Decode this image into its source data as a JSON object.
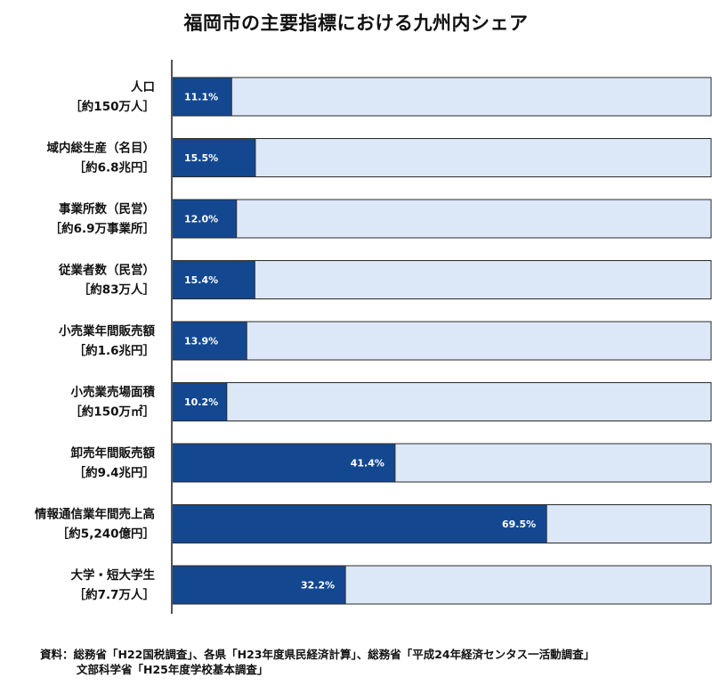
{
  "chart_data": {
    "type": "bar",
    "orientation": "horizontal",
    "stacked_share": true,
    "title": "福岡市の主要指標における九州内シェア",
    "categories": [
      {
        "name": "人口",
        "total": "［約150万人］"
      },
      {
        "name": "域内総生産（名目）",
        "total": "［約6.8兆円］"
      },
      {
        "name": "事業所数（民営）",
        "total": "［約6.9万事業所］"
      },
      {
        "name": "従業者数（民営）",
        "total": "［約83万人］"
      },
      {
        "name": "小売業年間販売額",
        "total": "［約1.6兆円］"
      },
      {
        "name": "小売業売場面積",
        "total": "［約150万㎡］"
      },
      {
        "name": "卸売年間販売額",
        "total": "［約9.4兆円］"
      },
      {
        "name": "情報通信業年間売上高",
        "total": "［約5,240億円］"
      },
      {
        "name": "大学・短大学生",
        "total": "［約7.7万人］"
      }
    ],
    "values": [
      11.1,
      15.5,
      12.0,
      15.4,
      13.9,
      10.2,
      41.4,
      69.5,
      32.2
    ],
    "value_labels": [
      "11.1%",
      "15.5%",
      "12.0%",
      "15.4%",
      "13.9%",
      "10.2%",
      "41.4%",
      "69.5%",
      "32.2%"
    ],
    "xlim": [
      0,
      100
    ],
    "colors": {
      "share": "#134891",
      "rest": "#dce8f8",
      "border": "#2a2a2a",
      "axis": "#555555"
    },
    "grid": false,
    "legend": "none"
  },
  "source": {
    "line1": "資料：総務省「H22国税調査」、各県「H23年度県民経済計算」、総務省「平成24年経済センタス一活動調査」",
    "line2": "文部科学省「H25年度学校基本調査」"
  }
}
